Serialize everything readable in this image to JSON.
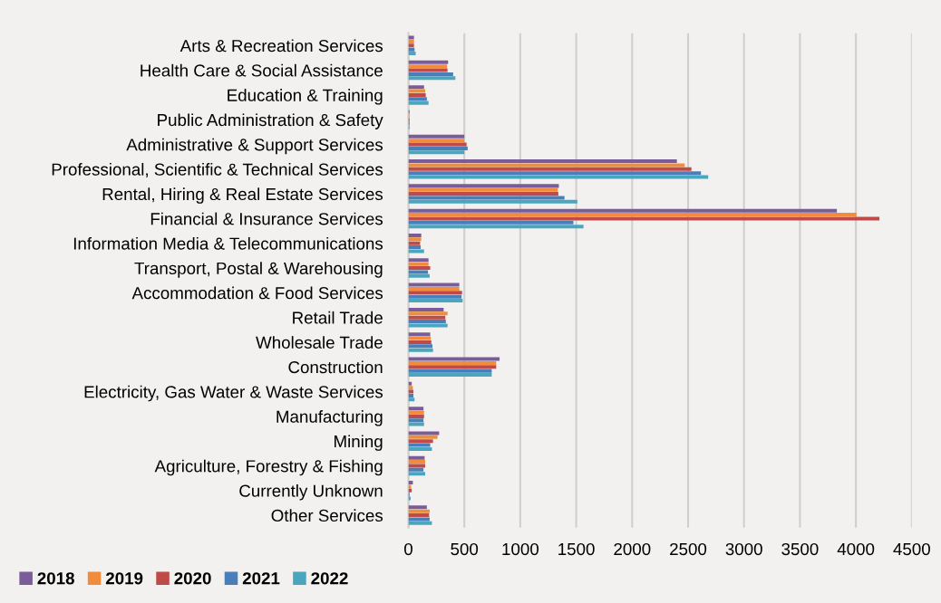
{
  "chart_data": {
    "type": "bar",
    "orientation": "horizontal",
    "categories": [
      "Arts & Recreation Services",
      "Health Care & Social Assistance",
      "Education & Training",
      "Public Administration & Safety",
      "Administrative & Support Services",
      "Professional, Scientific & Technical Services",
      "Rental, Hiring & Real Estate Services",
      "Financial & Insurance Services",
      "Information Media & Telecommunications",
      "Transport, Postal & Warehousing",
      "Accommodation & Food Services",
      "Retail Trade",
      "Wholesale Trade",
      "Construction",
      "Electricity, Gas Water & Waste Services",
      "Manufacturing",
      "Mining",
      "Agriculture, Forestry & Fishing",
      "Currently Unknown",
      "Other Services"
    ],
    "series": [
      {
        "name": "2018",
        "color": "#7b5c9a",
        "values": [
          50,
          355,
          140,
          10,
          500,
          2400,
          1345,
          3830,
          115,
          180,
          455,
          315,
          195,
          815,
          30,
          135,
          275,
          145,
          40,
          165
        ]
      },
      {
        "name": "2019",
        "color": "#f08c3c",
        "values": [
          50,
          345,
          150,
          10,
          500,
          2470,
          1335,
          4005,
          115,
          180,
          455,
          350,
          200,
          785,
          40,
          140,
          260,
          150,
          25,
          190
        ]
      },
      {
        "name": "2020",
        "color": "#be4b48",
        "values": [
          50,
          350,
          155,
          10,
          520,
          2530,
          1340,
          4210,
          105,
          195,
          480,
          330,
          205,
          785,
          45,
          140,
          220,
          150,
          30,
          185
        ]
      },
      {
        "name": "2021",
        "color": "#4a7ebb",
        "values": [
          55,
          400,
          165,
          10,
          530,
          2615,
          1395,
          1475,
          110,
          175,
          475,
          335,
          215,
          745,
          45,
          135,
          195,
          135,
          10,
          190
        ]
      },
      {
        "name": "2022",
        "color": "#4aa5bf",
        "values": [
          65,
          420,
          180,
          10,
          500,
          2680,
          1510,
          1565,
          140,
          190,
          485,
          350,
          220,
          745,
          55,
          140,
          210,
          150,
          20,
          210
        ]
      }
    ],
    "xlim": [
      0,
      4500
    ],
    "xticks": [
      0,
      500,
      1000,
      1500,
      2000,
      2500,
      3000,
      3500,
      4000,
      4500
    ],
    "grid": "x",
    "legend": "bottom left"
  }
}
